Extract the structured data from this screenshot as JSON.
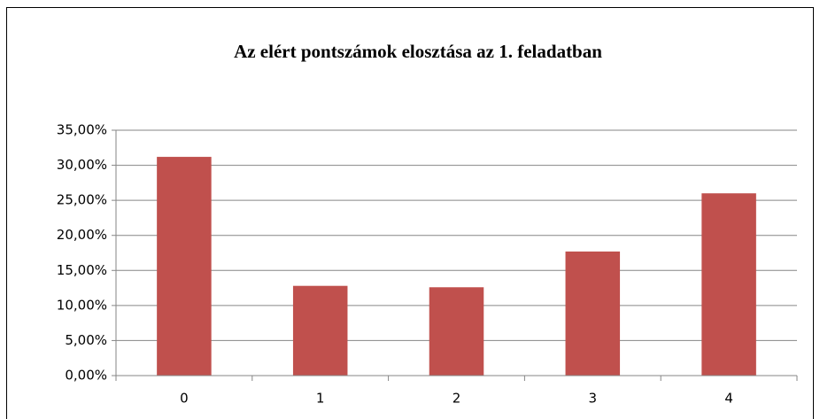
{
  "chart_data": {
    "type": "bar",
    "title": "Az elért pontszámok elosztása az 1. feladatban",
    "categories": [
      "0",
      "1",
      "2",
      "3",
      "4"
    ],
    "values": [
      31.2,
      12.8,
      12.6,
      17.7,
      26.0
    ],
    "color": "#c0504d",
    "ylim": [
      0,
      35
    ],
    "yticks": [
      {
        "value": 0,
        "label": "0,00%"
      },
      {
        "value": 5,
        "label": "5,00%"
      },
      {
        "value": 10,
        "label": "10,00%"
      },
      {
        "value": 15,
        "label": "15,00%"
      },
      {
        "value": 20,
        "label": "20,00%"
      },
      {
        "value": 25,
        "label": "25,00%"
      },
      {
        "value": 30,
        "label": "30,00%"
      },
      {
        "value": 35,
        "label": "35,00%"
      }
    ],
    "grid": true
  }
}
